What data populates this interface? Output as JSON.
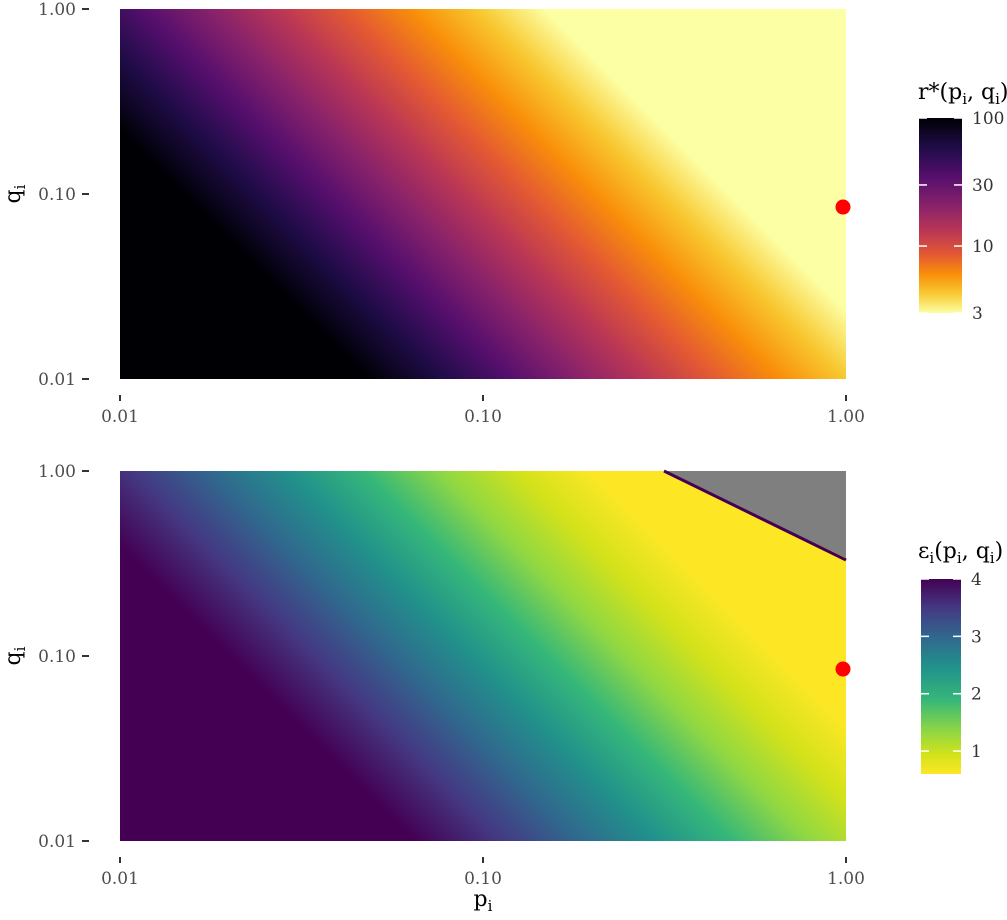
{
  "chart_data": [
    {
      "type": "heatmap",
      "title": "",
      "xlabel": "",
      "ylabel": "q",
      "ylabel_sub": "i",
      "x_scale": "log",
      "y_scale": "log",
      "xlim": [
        0.01,
        1.0
      ],
      "ylim": [
        0.01,
        1.0
      ],
      "x_ticks": [
        0.01,
        0.1,
        1.0
      ],
      "x_tick_labels": [
        "0.01",
        "0.10",
        "1.00"
      ],
      "y_ticks": [
        0.01,
        0.1,
        1.0
      ],
      "y_tick_labels": [
        "0.01",
        "0.10",
        "1.00"
      ],
      "legend": {
        "title_main": "r*(p",
        "title_sub1": "i",
        "title_mid": ", q",
        "title_sub2": "i",
        "title_end": ")",
        "scale": "log",
        "range": [
          3,
          100
        ],
        "ticks": [
          3,
          10,
          30,
          100
        ],
        "tick_labels": [
          "3",
          "10",
          "30",
          "100"
        ],
        "colormap": "inferno (reversed: high = dark)",
        "placement": "right"
      },
      "marker": {
        "x": 1.0,
        "y": 0.085,
        "color": "#ff0000"
      },
      "grid": false
    },
    {
      "type": "heatmap",
      "title": "",
      "xlabel": "p",
      "xlabel_sub": "i",
      "ylabel": "q",
      "ylabel_sub": "i",
      "x_scale": "log",
      "y_scale": "log",
      "xlim": [
        0.01,
        1.0
      ],
      "ylim": [
        0.01,
        1.0
      ],
      "x_ticks": [
        0.01,
        0.1,
        1.0
      ],
      "x_tick_labels": [
        "0.01",
        "0.10",
        "1.00"
      ],
      "y_ticks": [
        0.01,
        0.1,
        1.0
      ],
      "y_tick_labels": [
        "0.01",
        "0.10",
        "1.00"
      ],
      "legend": {
        "title_main": "ε",
        "title_sub0": "i",
        "title_open": "(p",
        "title_sub1": "i",
        "title_mid": ", q",
        "title_sub2": "i",
        "title_end": ")",
        "scale": "linear",
        "range": [
          0.6,
          4
        ],
        "ticks": [
          1,
          2,
          3,
          4
        ],
        "tick_labels": [
          "1",
          "2",
          "3",
          "4"
        ],
        "colormap": "viridis (reversed: high = dark)",
        "placement": "right"
      },
      "na_region_color": "#7f7f7f",
      "marker": {
        "x": 1.0,
        "y": 0.085,
        "color": "#ff0000"
      },
      "grid": false
    }
  ]
}
